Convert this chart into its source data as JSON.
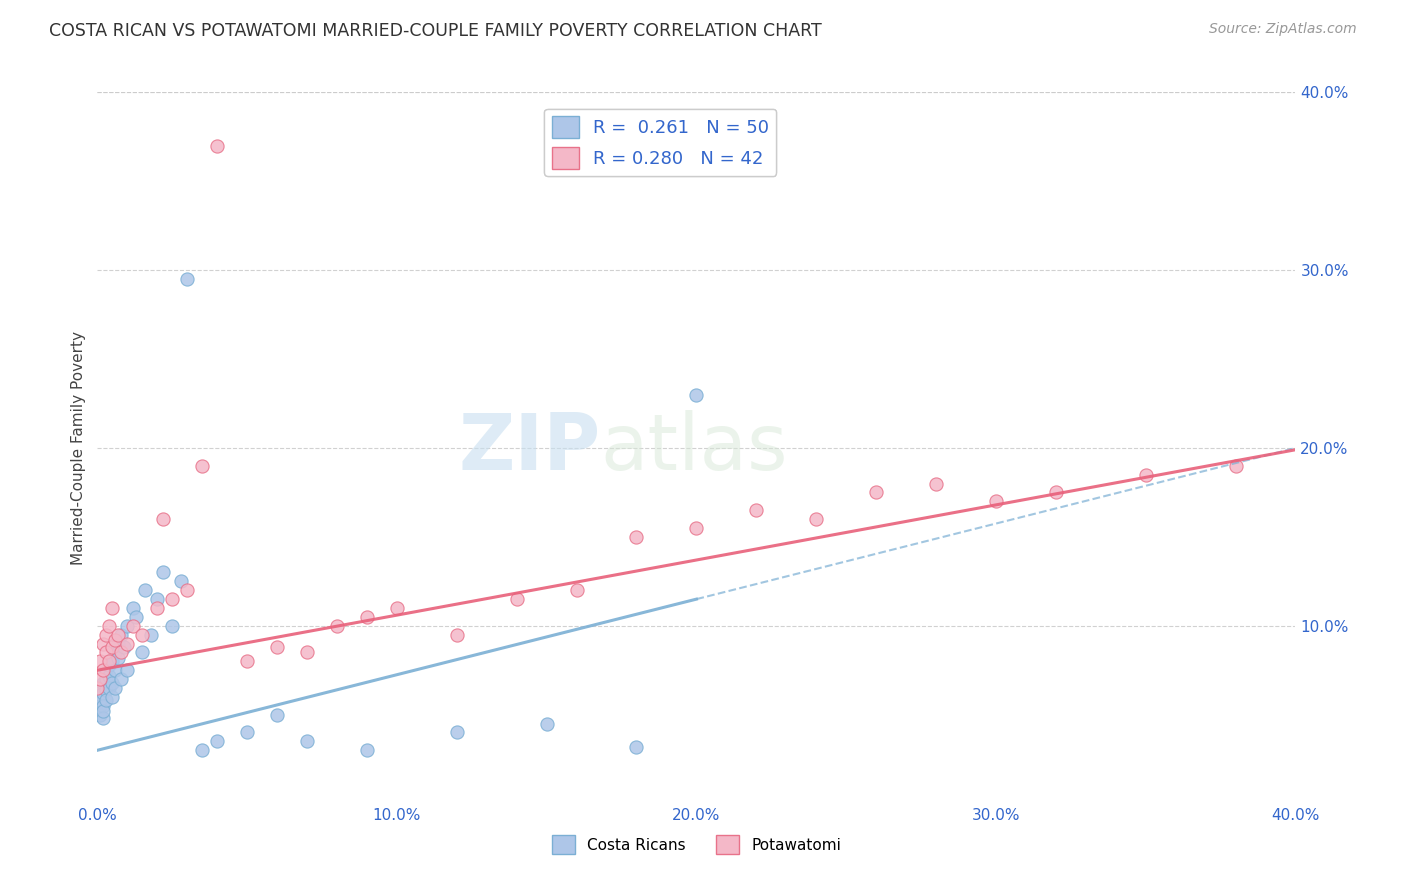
{
  "title": "COSTA RICAN VS POTAWATOMI MARRIED-COUPLE FAMILY POVERTY CORRELATION CHART",
  "source": "Source: ZipAtlas.com",
  "ylabel": "Married-Couple Family Poverty",
  "xlim": [
    0.0,
    0.4
  ],
  "ylim": [
    0.0,
    0.4
  ],
  "xtick_labels": [
    "0.0%",
    "10.0%",
    "20.0%",
    "30.0%",
    "40.0%"
  ],
  "xtick_vals": [
    0.0,
    0.1,
    0.2,
    0.3,
    0.4
  ],
  "ytick_labels_right": [
    "10.0%",
    "20.0%",
    "30.0%",
    "40.0%"
  ],
  "ytick_vals_right": [
    0.1,
    0.2,
    0.3,
    0.4
  ],
  "costa_rican_color": "#aec6e8",
  "potawatomi_color": "#f4b8c8",
  "costa_rican_edge_color": "#7bafd4",
  "potawatomi_edge_color": "#e8728a",
  "costa_rican_line_color": "#7bafd4",
  "potawatomi_line_color": "#e8607a",
  "legend_text_color": "#3366cc",
  "r_costa_rican": 0.261,
  "n_costa_rican": 50,
  "r_potawatomi": 0.28,
  "n_potawatomi": 42,
  "watermark_zip": "ZIP",
  "watermark_atlas": "atlas",
  "background_color": "#ffffff",
  "grid_color": "#cccccc",
  "cr_line_intercept": 0.03,
  "cr_line_slope": 0.425,
  "pot_line_intercept": 0.075,
  "pot_line_slope": 0.31,
  "costa_rican_x": [
    0.0,
    0.001,
    0.001,
    0.001,
    0.001,
    0.002,
    0.002,
    0.002,
    0.002,
    0.002,
    0.003,
    0.003,
    0.003,
    0.003,
    0.004,
    0.004,
    0.004,
    0.005,
    0.005,
    0.005,
    0.006,
    0.006,
    0.006,
    0.007,
    0.007,
    0.008,
    0.008,
    0.009,
    0.01,
    0.01,
    0.012,
    0.013,
    0.015,
    0.016,
    0.018,
    0.02,
    0.022,
    0.025,
    0.028,
    0.03,
    0.035,
    0.04,
    0.05,
    0.06,
    0.07,
    0.09,
    0.12,
    0.15,
    0.18,
    0.2
  ],
  "costa_rican_y": [
    0.06,
    0.055,
    0.065,
    0.058,
    0.05,
    0.062,
    0.068,
    0.055,
    0.048,
    0.052,
    0.07,
    0.064,
    0.058,
    0.075,
    0.072,
    0.065,
    0.078,
    0.08,
    0.068,
    0.06,
    0.075,
    0.085,
    0.065,
    0.09,
    0.082,
    0.095,
    0.07,
    0.088,
    0.1,
    0.075,
    0.11,
    0.105,
    0.085,
    0.12,
    0.095,
    0.115,
    0.13,
    0.1,
    0.125,
    0.295,
    0.03,
    0.035,
    0.04,
    0.05,
    0.035,
    0.03,
    0.04,
    0.045,
    0.032,
    0.23
  ],
  "potawatomi_x": [
    0.0,
    0.001,
    0.001,
    0.002,
    0.002,
    0.003,
    0.003,
    0.004,
    0.004,
    0.005,
    0.005,
    0.006,
    0.007,
    0.008,
    0.01,
    0.012,
    0.015,
    0.02,
    0.022,
    0.025,
    0.03,
    0.035,
    0.04,
    0.05,
    0.06,
    0.07,
    0.08,
    0.09,
    0.1,
    0.12,
    0.14,
    0.16,
    0.18,
    0.2,
    0.22,
    0.24,
    0.26,
    0.28,
    0.3,
    0.32,
    0.35,
    0.38
  ],
  "potawatomi_y": [
    0.065,
    0.07,
    0.08,
    0.075,
    0.09,
    0.085,
    0.095,
    0.08,
    0.1,
    0.088,
    0.11,
    0.092,
    0.095,
    0.085,
    0.09,
    0.1,
    0.095,
    0.11,
    0.16,
    0.115,
    0.12,
    0.19,
    0.37,
    0.08,
    0.088,
    0.085,
    0.1,
    0.105,
    0.11,
    0.095,
    0.115,
    0.12,
    0.15,
    0.155,
    0.165,
    0.16,
    0.175,
    0.18,
    0.17,
    0.175,
    0.185,
    0.19
  ]
}
